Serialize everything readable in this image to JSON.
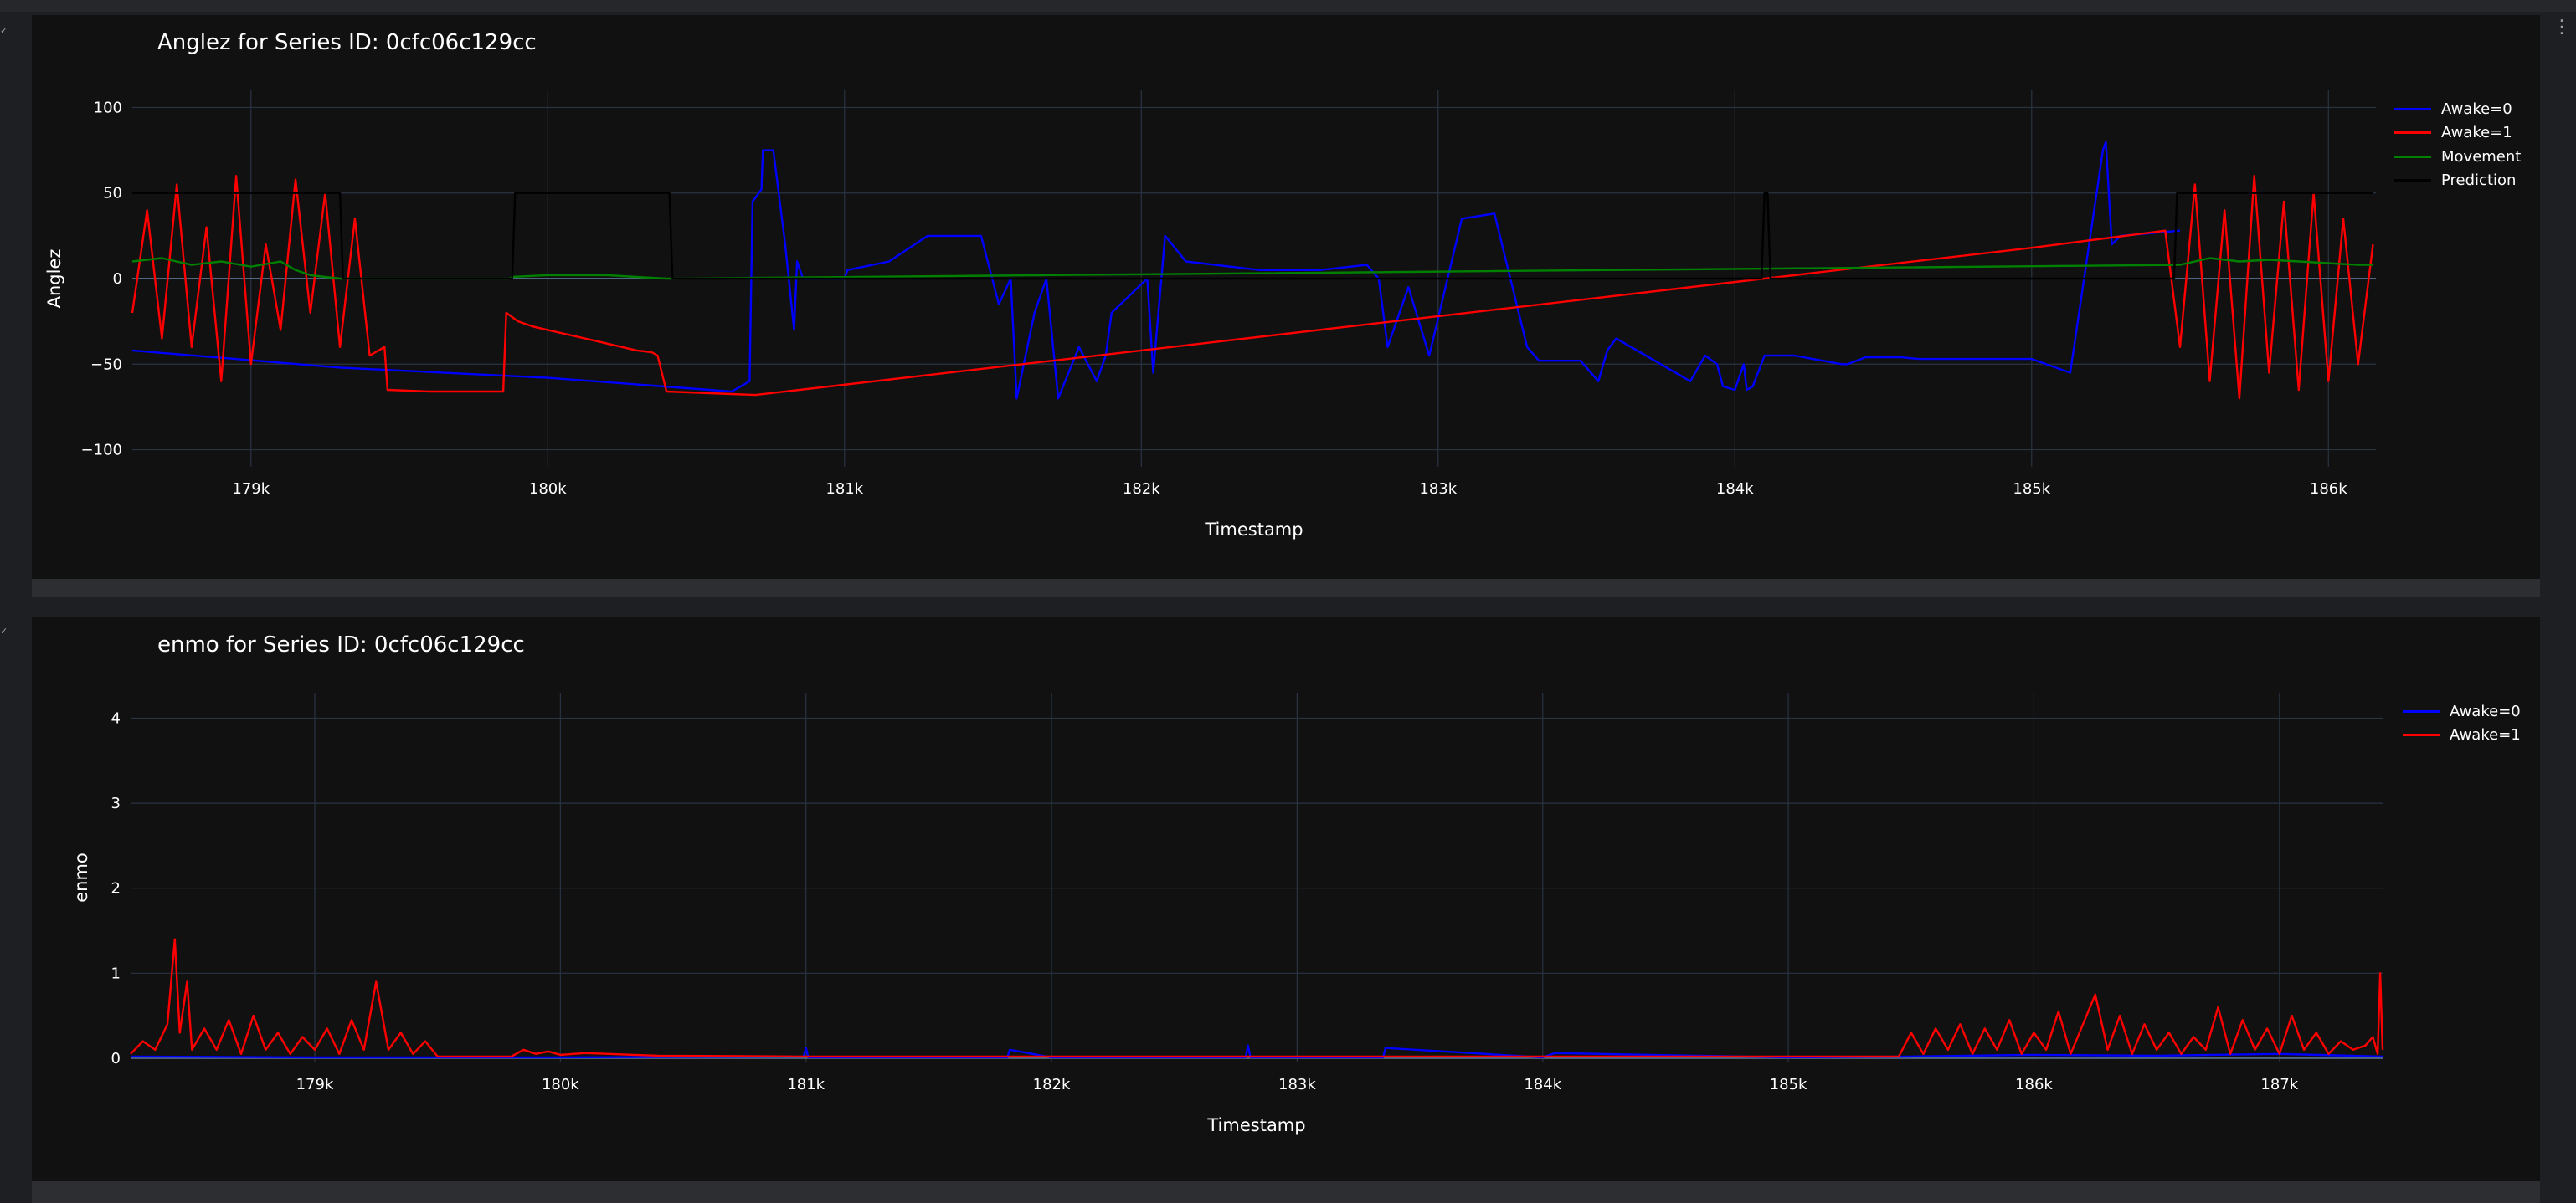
{
  "colors": {
    "awake0": "#0000ff",
    "awake1": "#ff0000",
    "movement": "#008000",
    "prediction": "#000000",
    "plot_bg": "#111111",
    "grid": "#283442",
    "zero_line": "#506784"
  },
  "more_icon": "⋮",
  "collapse_icon": "✓",
  "chart_data": [
    {
      "type": "line",
      "title": "Anglez for Series ID: 0cfc06c129cc",
      "xlabel": "Timestamp",
      "ylabel": "Anglez",
      "xlim": [
        178600,
        186160
      ],
      "ylim": [
        -110,
        110
      ],
      "xticks": [
        179000,
        180000,
        181000,
        182000,
        183000,
        184000,
        185000,
        186000
      ],
      "xtick_labels": [
        "179k",
        "180k",
        "181k",
        "182k",
        "183k",
        "184k",
        "185k",
        "186k"
      ],
      "yticks": [
        -100,
        -50,
        0,
        50,
        100
      ],
      "ytick_labels": [
        "−100",
        "−50",
        "0",
        "50",
        "100"
      ],
      "grid": true,
      "legend_position": "top-right",
      "series": [
        {
          "name": "Awake=0",
          "color": "#0000ff",
          "x": [
            178600,
            179300,
            180000,
            180620,
            180680,
            180690,
            180720,
            180725,
            180760,
            180800,
            180830,
            180840,
            180860,
            181000,
            181010,
            181150,
            181280,
            181460,
            181520,
            181560,
            181580,
            181640,
            181680,
            181720,
            181790,
            181850,
            181880,
            181900,
            182020,
            182040,
            182080,
            182150,
            182400,
            182600,
            182760,
            182800,
            182830,
            182850,
            182900,
            182970,
            183080,
            183190,
            183300,
            183340,
            183480,
            183540,
            183570,
            183600,
            183850,
            183900,
            183940,
            183960,
            184000,
            184010,
            184030,
            184040,
            184060,
            184100,
            184200,
            184360,
            184380,
            184440,
            184560,
            184620,
            185000,
            185130,
            185240,
            185250,
            185270,
            185300,
            185500
          ],
          "y": [
            -42,
            -52,
            -58,
            -66,
            -60,
            45,
            52,
            75,
            75,
            20,
            -30,
            10,
            0,
            0,
            5,
            10,
            25,
            25,
            -15,
            0,
            -70,
            -20,
            0,
            -70,
            -40,
            -60,
            -45,
            -20,
            0,
            -55,
            25,
            10,
            5,
            5,
            8,
            0,
            -40,
            -30,
            -5,
            -45,
            35,
            38,
            -40,
            -48,
            -48,
            -60,
            -42,
            -35,
            -60,
            -45,
            -50,
            -63,
            -65,
            -60,
            -50,
            -65,
            -63,
            -45,
            -45,
            -50,
            -50,
            -46,
            -46,
            -47,
            -47,
            -55,
            75,
            80,
            20,
            25,
            28
          ]
        },
        {
          "name": "Awake=1",
          "color": "#ff0000",
          "x": [
            178600,
            178650,
            178700,
            178750,
            178800,
            178850,
            178900,
            178950,
            179000,
            179050,
            179100,
            179150,
            179200,
            179250,
            179300,
            179350,
            179400,
            179450,
            179460,
            179600,
            179800,
            179850,
            179860,
            179900,
            179950,
            180000,
            180050,
            180100,
            180150,
            180200,
            180250,
            180300,
            180350,
            180370,
            180400,
            180700,
            185000,
            185450,
            185500,
            185550,
            185600,
            185650,
            185700,
            185750,
            185800,
            185850,
            185900,
            185950,
            186000,
            186050,
            186100,
            186150
          ],
          "y": [
            -20,
            40,
            -35,
            55,
            -40,
            30,
            -60,
            60,
            -50,
            20,
            -30,
            58,
            -20,
            50,
            -40,
            35,
            -45,
            -40,
            -65,
            -66,
            -66,
            -66,
            -20,
            -25,
            -28,
            -30,
            -32,
            -34,
            -36,
            -38,
            -40,
            -42,
            -43,
            -45,
            -66,
            -68,
            18,
            28,
            -40,
            55,
            -60,
            40,
            -70,
            60,
            -55,
            45,
            -65,
            50,
            -60,
            35,
            -50,
            20
          ]
        },
        {
          "name": "Movement",
          "color": "#008000",
          "x": [
            178600,
            178700,
            178800,
            178900,
            179000,
            179100,
            179150,
            179200,
            179250,
            179300,
            179850,
            179870,
            179880,
            180000,
            180100,
            180200,
            180300,
            180400,
            180410,
            185500,
            185550,
            185600,
            185700,
            185800,
            185900,
            186000,
            186100,
            186150
          ],
          "y": [
            10,
            12,
            8,
            10,
            7,
            10,
            5,
            2,
            1,
            0,
            0,
            0,
            1,
            2,
            2,
            2,
            1,
            0,
            0,
            8,
            10,
            12,
            10,
            11,
            10,
            9,
            8,
            8
          ]
        },
        {
          "name": "Prediction",
          "color": "#000000",
          "x": [
            178600,
            179300,
            179310,
            179880,
            179890,
            180410,
            180420,
            184090,
            184100,
            184110,
            184120,
            185480,
            185490,
            186150
          ],
          "y": [
            50,
            50,
            0,
            0,
            50,
            50,
            0,
            0,
            50,
            50,
            0,
            0,
            50,
            50
          ]
        }
      ]
    },
    {
      "type": "line",
      "title": "enmo for Series ID: 0cfc06c129cc",
      "xlabel": "Timestamp",
      "ylabel": "enmo",
      "xlim": [
        178250,
        187420
      ],
      "ylim": [
        -0.05,
        4.3
      ],
      "xticks": [
        179000,
        180000,
        181000,
        182000,
        183000,
        184000,
        185000,
        186000,
        187000
      ],
      "xtick_labels": [
        "179k",
        "180k",
        "181k",
        "182k",
        "183k",
        "184k",
        "185k",
        "186k",
        "187k"
      ],
      "yticks": [
        0,
        1,
        2,
        3,
        4
      ],
      "ytick_labels": [
        "0",
        "1",
        "2",
        "3",
        "4"
      ],
      "grid": true,
      "legend_position": "top-right",
      "series": [
        {
          "name": "Awake=0",
          "color": "#0000ff",
          "x": [
            178250,
            179000,
            180000,
            180990,
            181000,
            181010,
            181500,
            181820,
            181830,
            182000,
            182790,
            182800,
            182810,
            183000,
            183350,
            183360,
            184000,
            184050,
            185000,
            185500,
            186000,
            186500,
            187000,
            187420
          ],
          "y": [
            0.02,
            0.01,
            0.01,
            0.02,
            0.12,
            0.01,
            0.01,
            0.01,
            0.1,
            0.01,
            0.01,
            0.15,
            0.01,
            0.01,
            0.01,
            0.12,
            0.01,
            0.06,
            0.01,
            0.02,
            0.04,
            0.03,
            0.05,
            0.02
          ]
        },
        {
          "name": "Awake=1",
          "color": "#ff0000",
          "x": [
            178250,
            178300,
            178350,
            178400,
            178430,
            178450,
            178480,
            178500,
            178550,
            178600,
            178650,
            178700,
            178750,
            178800,
            178850,
            178900,
            178950,
            179000,
            179050,
            179100,
            179150,
            179200,
            179250,
            179300,
            179350,
            179400,
            179450,
            179500,
            179800,
            179850,
            179900,
            179950,
            180000,
            180100,
            180200,
            180300,
            180400,
            181000,
            182000,
            183000,
            184000,
            185000,
            185450,
            185500,
            185550,
            185600,
            185650,
            185700,
            185750,
            185800,
            185850,
            185900,
            185950,
            186000,
            186050,
            186100,
            186150,
            186200,
            186250,
            186300,
            186350,
            186400,
            186450,
            186500,
            186550,
            186600,
            186650,
            186700,
            186750,
            186800,
            186850,
            186900,
            186950,
            187000,
            187050,
            187100,
            187150,
            187200,
            187250,
            187300,
            187350,
            187380,
            187400,
            187410,
            187420
          ],
          "y": [
            0.05,
            0.2,
            0.1,
            0.4,
            1.4,
            0.3,
            0.9,
            0.1,
            0.35,
            0.1,
            0.45,
            0.05,
            0.5,
            0.1,
            0.3,
            0.05,
            0.25,
            0.1,
            0.35,
            0.05,
            0.45,
            0.1,
            0.9,
            0.1,
            0.3,
            0.05,
            0.2,
            0.02,
            0.02,
            0.1,
            0.05,
            0.08,
            0.04,
            0.06,
            0.05,
            0.04,
            0.03,
            0.02,
            0.02,
            0.02,
            0.02,
            0.02,
            0.02,
            0.3,
            0.05,
            0.35,
            0.1,
            0.4,
            0.05,
            0.35,
            0.1,
            0.45,
            0.05,
            0.3,
            0.1,
            0.55,
            0.05,
            0.4,
            0.75,
            0.1,
            0.5,
            0.05,
            0.4,
            0.1,
            0.3,
            0.05,
            0.25,
            0.1,
            0.6,
            0.05,
            0.45,
            0.1,
            0.35,
            0.05,
            0.5,
            0.1,
            0.3,
            0.05,
            0.2,
            0.1,
            0.15,
            0.25,
            0.05,
            1.0,
            0.1
          ]
        }
      ]
    }
  ]
}
